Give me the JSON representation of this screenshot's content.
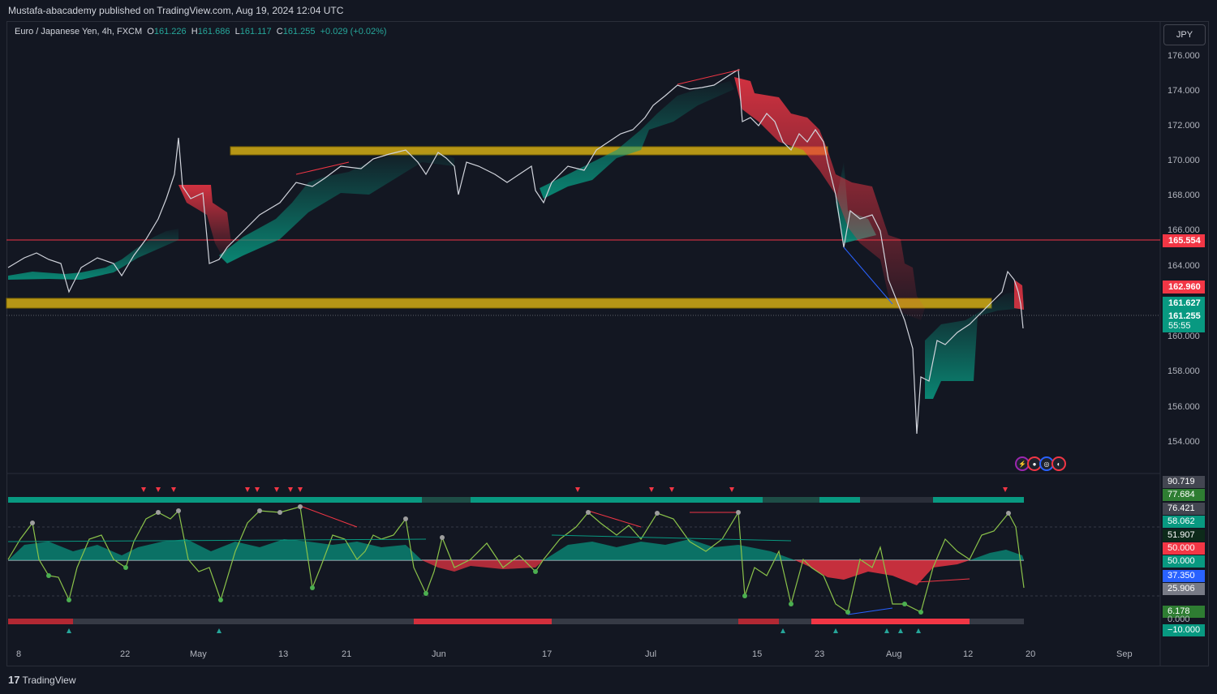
{
  "header": {
    "published": "Mustafa-abacademy published on TradingView.com, Aug 19, 2024 12:04 UTC"
  },
  "symbol": {
    "name": "Euro / Japanese Yen, 4h, FXCM",
    "o_label": "O",
    "o": "161.226",
    "h_label": "H",
    "h": "161.686",
    "l_label": "L",
    "l": "161.117",
    "c_label": "C",
    "c": "161.255",
    "change": "+0.029 (+0.02%)"
  },
  "currency_button": "JPY",
  "price_axis": [
    "176.000",
    "174.000",
    "172.000",
    "170.000",
    "168.000",
    "166.000",
    "164.000",
    "160.000",
    "158.000",
    "156.000",
    "154.000"
  ],
  "price_tags": [
    {
      "label": "165.554",
      "color": "#f23645"
    },
    {
      "label": "162.960",
      "color": "#f23645"
    },
    {
      "label": "161.627",
      "color": "#089981"
    },
    {
      "label": "161.255",
      "color": "#089981"
    }
  ],
  "countdown": "55:55",
  "oscillator_axis": [
    {
      "label": "90.719",
      "color": "#434651"
    },
    {
      "label": "77.684",
      "color": "#2e7d32"
    },
    {
      "label": "76.421",
      "color": "#434651"
    },
    {
      "label": "58.062",
      "color": "#089981"
    },
    {
      "label": "51.907",
      "color": "#0d2a1a"
    },
    {
      "label": "50.000",
      "color": "#f23645"
    },
    {
      "label": "50.000",
      "color": "#089981"
    },
    {
      "label": "37.350",
      "color": "#2962ff"
    },
    {
      "label": "25.906",
      "color": "#787b86"
    },
    {
      "label": "6.178",
      "color": "#2e7d32"
    },
    {
      "label": "0.000",
      "color": "transparent"
    },
    {
      "label": "−10.000",
      "color": "#089981"
    }
  ],
  "date_axis": [
    "8",
    "22",
    "May",
    "13",
    "21",
    "Jun",
    "17",
    "Jul",
    "15",
    "23",
    "Aug",
    "12",
    "20",
    "Sep"
  ],
  "footer": {
    "logo": "TradingView",
    "logo_mark": "17"
  },
  "colors": {
    "bull": "#089981",
    "bear": "#f23645",
    "zone": "#c8a415",
    "bg": "#131722"
  }
}
